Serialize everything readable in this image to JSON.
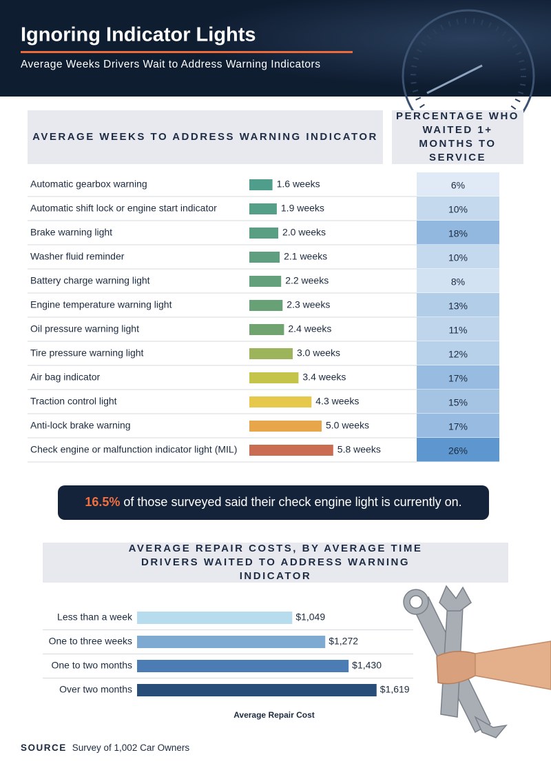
{
  "header": {
    "title": "Ignoring Indicator Lights",
    "subtitle": "Average Weeks Drivers Wait to Address Warning Indicators"
  },
  "chart_data": [
    {
      "type": "bar",
      "orientation": "horizontal",
      "title": "AVERAGE WEEKS TO ADDRESS WARNING INDICATOR",
      "categories": [
        "Automatic gearbox warning",
        "Automatic shift lock or engine start indicator",
        "Brake warning light",
        "Washer fluid reminder",
        "Battery charge warning light",
        "Engine temperature warning light",
        "Oil pressure warning light",
        "Tire pressure warning light",
        "Air bag indicator",
        "Traction control light",
        "Anti-lock brake warning",
        "Check engine or malfunction indicator light (MIL)"
      ],
      "values": [
        1.6,
        1.9,
        2.0,
        2.1,
        2.2,
        2.3,
        2.4,
        3.0,
        3.4,
        4.3,
        5.0,
        5.8
      ],
      "value_labels": [
        "1.6 weeks",
        "1.9 weeks",
        "2.0 weeks",
        "2.1 weeks",
        "2.2 weeks",
        "2.3 weeks",
        "2.4 weeks",
        "3.0 weeks",
        "3.4 weeks",
        "4.3 weeks",
        "5.0 weeks",
        "5.8 weeks"
      ],
      "colors": [
        "#4f9e8b",
        "#559f88",
        "#5a9f84",
        "#5f9f80",
        "#64a07b",
        "#69a176",
        "#70a370",
        "#9db45a",
        "#c4c34a",
        "#e5c84c",
        "#e7a64a",
        "#c96c52"
      ],
      "percent_column": {
        "title": "PERCENTAGE WHO WAITED 1+ MONTHS TO SERVICE",
        "values": [
          6,
          10,
          18,
          10,
          8,
          13,
          11,
          12,
          17,
          15,
          17,
          26
        ],
        "value_labels": [
          "6%",
          "10%",
          "18%",
          "10%",
          "8%",
          "13%",
          "11%",
          "12%",
          "17%",
          "15%",
          "17%",
          "26%"
        ]
      }
    },
    {
      "type": "bar",
      "orientation": "horizontal",
      "title": "AVERAGE REPAIR COSTS, BY AVERAGE TIME DRIVERS WAITED TO ADDRESS WARNING INDICATOR",
      "categories": [
        "Less than a week",
        "One to three weeks",
        "One to two months",
        "Over two months"
      ],
      "values": [
        1049,
        1272,
        1430,
        1619
      ],
      "value_labels": [
        "$1,049",
        "$1,272",
        "$1,430",
        "$1,619"
      ],
      "colors": [
        "#b7dcee",
        "#7eaad2",
        "#4b7db4",
        "#294d79"
      ],
      "xlabel": "Average Repair Cost"
    }
  ],
  "callout": {
    "highlight": "16.5%",
    "text": "of those surveyed said their check engine light is currently on."
  },
  "source": {
    "label": "SOURCE",
    "text": "Survey of 1,002 Car Owners"
  }
}
